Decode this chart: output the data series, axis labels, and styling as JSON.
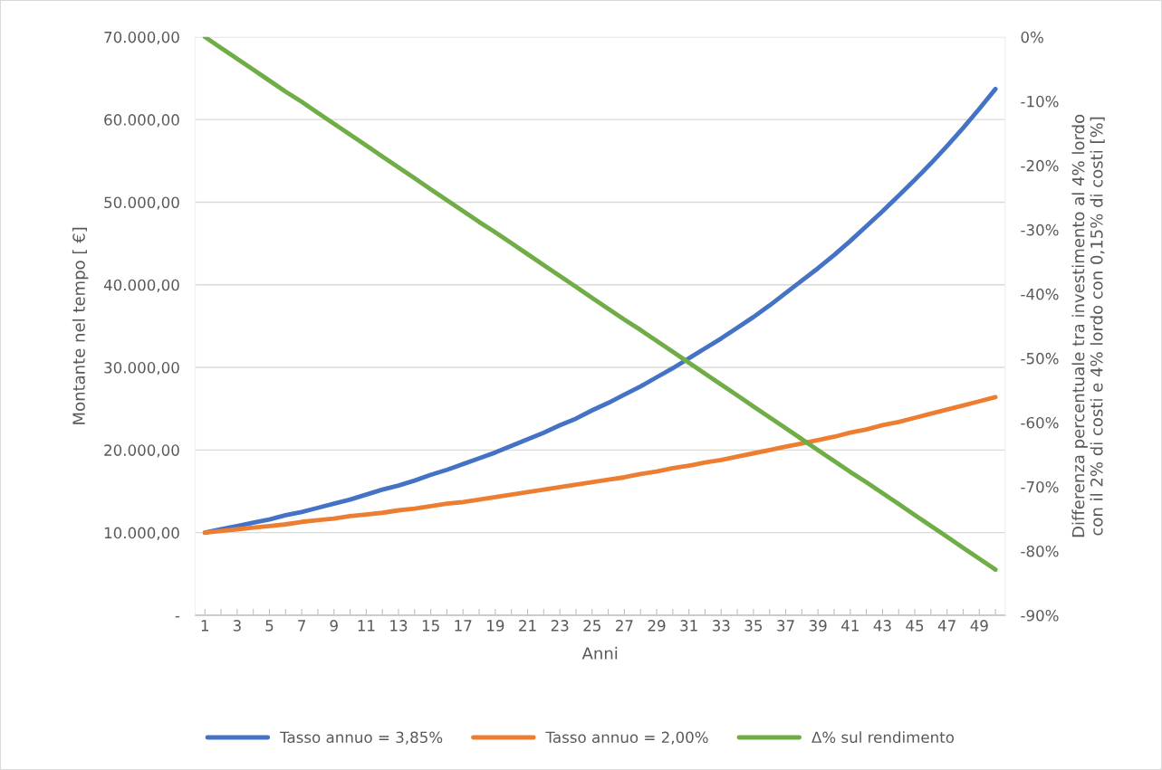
{
  "chart_data": {
    "type": "line",
    "xlabel": "Anni",
    "ylabel": "Montante nel tempo [ €]",
    "y2label": "Differenza percentuale tra investimento al 4% lordo con il 2% di costi e 4% lordo con 0,15% di costi [%]",
    "categories": [
      "1",
      null,
      "3",
      null,
      "5",
      null,
      "7",
      null,
      "9",
      null,
      "11",
      null,
      "13",
      null,
      "15",
      null,
      "17",
      null,
      "19",
      null,
      "21",
      null,
      "23",
      null,
      "25",
      null,
      "27",
      null,
      "29",
      null,
      "31",
      null,
      "33",
      null,
      "35",
      null,
      "37",
      null,
      "39",
      null,
      "41",
      null,
      "43",
      null,
      "45",
      null,
      "47",
      null,
      "49",
      null
    ],
    "series": [
      {
        "name": "Tasso annuo = 3,85%",
        "color": "#4472c4",
        "values": [
          10000,
          10400,
          10800,
          11200,
          11600,
          12100,
          12500,
          13000,
          13500,
          14000,
          14600,
          15200,
          15700,
          16300,
          17000,
          17600,
          18300,
          19000,
          19700,
          20500,
          21300,
          22100,
          23000,
          23800,
          24800,
          25700,
          26700,
          27700,
          28800,
          29900,
          31100,
          32300,
          33500,
          34800,
          36100,
          37500,
          39000,
          40500,
          42000,
          43600,
          45300,
          47100,
          48900,
          50800,
          52700,
          54700,
          56800,
          59000,
          61300,
          63700
        ]
      },
      {
        "name": "Tasso annuo = 2,00%",
        "color": "#ed7d31",
        "values": [
          10000,
          10200,
          10400,
          10600,
          10800,
          11000,
          11300,
          11500,
          11700,
          12000,
          12200,
          12400,
          12700,
          12900,
          13200,
          13500,
          13700,
          14000,
          14300,
          14600,
          14900,
          15200,
          15500,
          15800,
          16100,
          16400,
          16700,
          17100,
          17400,
          17800,
          18100,
          18500,
          18800,
          19200,
          19600,
          20000,
          20400,
          20800,
          21200,
          21600,
          22100,
          22500,
          23000,
          23400,
          23900,
          24400,
          24900,
          25400,
          25900,
          26400
        ]
      },
      {
        "name": "Δ% sul rendimento",
        "color": "#70ad47",
        "axis": "y2",
        "values": [
          0,
          -1.7,
          -3.4,
          -5.1,
          -6.8,
          -8.5,
          -10.1,
          -11.8,
          -13.5,
          -15.2,
          -16.9,
          -18.6,
          -20.3,
          -22.0,
          -23.7,
          -25.4,
          -27.1,
          -28.8,
          -30.4,
          -32.1,
          -33.8,
          -35.5,
          -37.2,
          -38.9,
          -40.6,
          -42.3,
          -44.0,
          -45.6,
          -47.3,
          -49.0,
          -50.7,
          -52.4,
          -54.1,
          -55.8,
          -57.5,
          -59.2,
          -60.9,
          -62.6,
          -64.3,
          -66.0,
          -67.7,
          -69.3,
          -71.0,
          -72.7,
          -74.4,
          -76.1,
          -77.8,
          -79.5,
          -81.2,
          -82.9
        ]
      }
    ],
    "ylim": [
      0,
      70000
    ],
    "yticks": [
      {
        "value": 0,
        "label": "-"
      },
      {
        "value": 10000,
        "label": "10.000,00"
      },
      {
        "value": 20000,
        "label": "20.000,00"
      },
      {
        "value": 30000,
        "label": "30.000,00"
      },
      {
        "value": 40000,
        "label": "40.000,00"
      },
      {
        "value": 50000,
        "label": "50.000,00"
      },
      {
        "value": 60000,
        "label": "60.000,00"
      },
      {
        "value": 70000,
        "label": "70.000,00"
      }
    ],
    "y2lim": [
      -90,
      0
    ],
    "y2ticks": [
      {
        "value": 0,
        "label": "0%"
      },
      {
        "value": -10,
        "label": "-10%"
      },
      {
        "value": -20,
        "label": "-20%"
      },
      {
        "value": -30,
        "label": "-30%"
      },
      {
        "value": -40,
        "label": "-40%"
      },
      {
        "value": -50,
        "label": "-50%"
      },
      {
        "value": -60,
        "label": "-60%"
      },
      {
        "value": -70,
        "label": "-70%"
      },
      {
        "value": -80,
        "label": "-80%"
      },
      {
        "value": -90,
        "label": "-90%"
      }
    ],
    "grid": "y",
    "legend": "bottom",
    "marker": "none",
    "line_style": "solid"
  }
}
